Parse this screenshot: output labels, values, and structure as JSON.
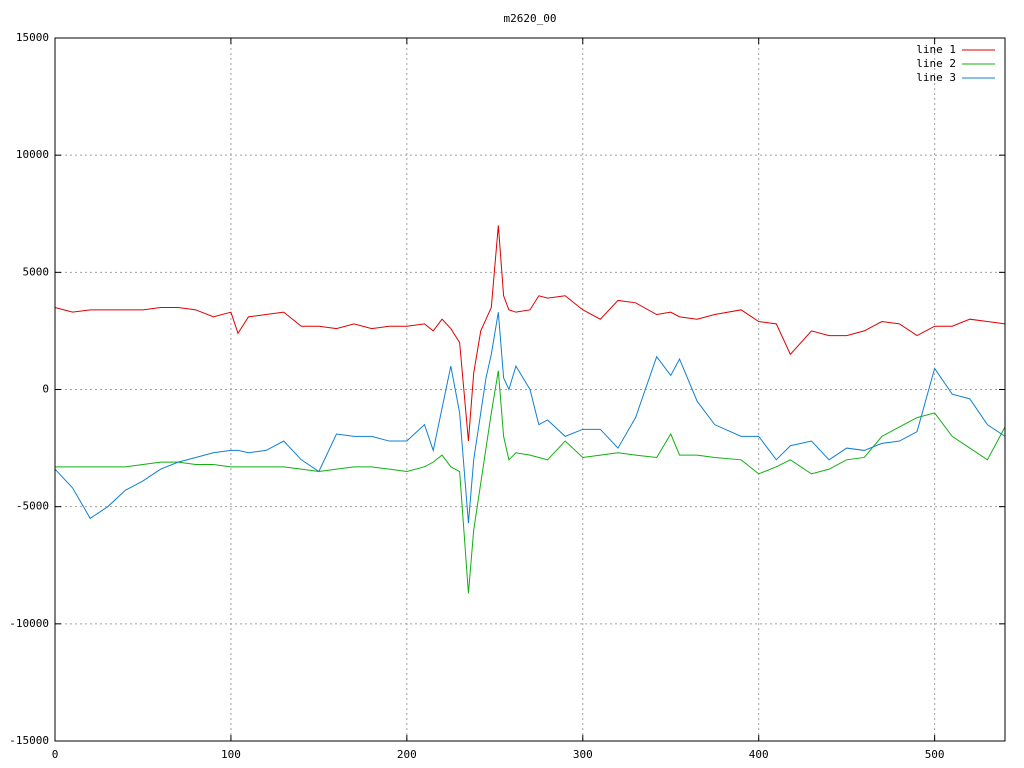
{
  "chart_data": {
    "type": "line",
    "title": "m2620_00",
    "x": [
      0,
      10,
      20,
      30,
      40,
      50,
      60,
      70,
      80,
      90,
      100,
      104,
      110,
      120,
      130,
      140,
      150,
      160,
      170,
      180,
      190,
      200,
      210,
      215,
      220,
      225,
      230,
      235,
      238,
      242,
      245,
      248,
      252,
      255,
      258,
      262,
      270,
      275,
      280,
      290,
      300,
      310,
      320,
      330,
      342,
      350,
      355,
      365,
      375,
      390,
      400,
      410,
      418,
      430,
      440,
      450,
      460,
      470,
      480,
      490,
      500,
      510,
      520,
      530,
      540
    ],
    "series": [
      {
        "name": "line 1",
        "color": "#e00000",
        "values": [
          3500,
          3300,
          3400,
          3400,
          3400,
          3400,
          3500,
          3500,
          3400,
          3100,
          3300,
          2400,
          3100,
          3200,
          3300,
          2700,
          2700,
          2600,
          2800,
          2600,
          2700,
          2700,
          2800,
          2500,
          3000,
          2600,
          2000,
          -2200,
          700,
          2500,
          3000,
          3500,
          7000,
          4000,
          3400,
          3300,
          3400,
          4000,
          3900,
          4000,
          3400,
          3000,
          3800,
          3700,
          3200,
          3300,
          3100,
          3000,
          3200,
          3400,
          2900,
          2800,
          1500,
          2500,
          2300,
          2300,
          2500,
          2900,
          2800,
          2300,
          2700,
          2700,
          3000,
          2900,
          2800
        ]
      },
      {
        "name": "line 2",
        "color": "#10b010",
        "values": [
          -3300,
          -3300,
          -3300,
          -3300,
          -3300,
          -3200,
          -3100,
          -3100,
          -3200,
          -3200,
          -3300,
          -3300,
          -3300,
          -3300,
          -3300,
          -3400,
          -3500,
          -3400,
          -3300,
          -3300,
          -3400,
          -3500,
          -3300,
          -3100,
          -2800,
          -3300,
          -3500,
          -8700,
          -6000,
          -4000,
          -2500,
          -1000,
          800,
          -2000,
          -3000,
          -2700,
          -2800,
          -2900,
          -3000,
          -2200,
          -2900,
          -2800,
          -2700,
          -2800,
          -2900,
          -1900,
          -2800,
          -2800,
          -2900,
          -3000,
          -3600,
          -3300,
          -3000,
          -3600,
          -3400,
          -3000,
          -2900,
          -2000,
          -1600,
          -1200,
          -1000,
          -2000,
          -2500,
          -3000,
          -1600
        ]
      },
      {
        "name": "line 3",
        "color": "#1080d0",
        "values": [
          -3400,
          -4200,
          -5500,
          -5000,
          -4300,
          -3900,
          -3400,
          -3100,
          -2900,
          -2700,
          -2600,
          -2600,
          -2700,
          -2600,
          -2200,
          -3000,
          -3500,
          -1900,
          -2000,
          -2000,
          -2200,
          -2200,
          -1500,
          -2600,
          -800,
          1000,
          -1000,
          -5700,
          -3000,
          -1000,
          500,
          1500,
          3300,
          500,
          0,
          1000,
          0,
          -1500,
          -1300,
          -2000,
          -1700,
          -1700,
          -2500,
          -1200,
          1400,
          600,
          1300,
          -500,
          -1500,
          -2000,
          -2000,
          -3000,
          -2400,
          -2200,
          -3000,
          -2500,
          -2600,
          -2300,
          -2200,
          -1800,
          900,
          -200,
          -400,
          -1500,
          -2000
        ]
      }
    ],
    "xlim": [
      0,
      540
    ],
    "ylim": [
      -15000,
      15000
    ],
    "xticks": [
      0,
      100,
      200,
      300,
      400,
      500
    ],
    "yticks": [
      -15000,
      -10000,
      -5000,
      0,
      5000,
      10000,
      15000
    ],
    "grid": true,
    "legend": "top-right"
  }
}
